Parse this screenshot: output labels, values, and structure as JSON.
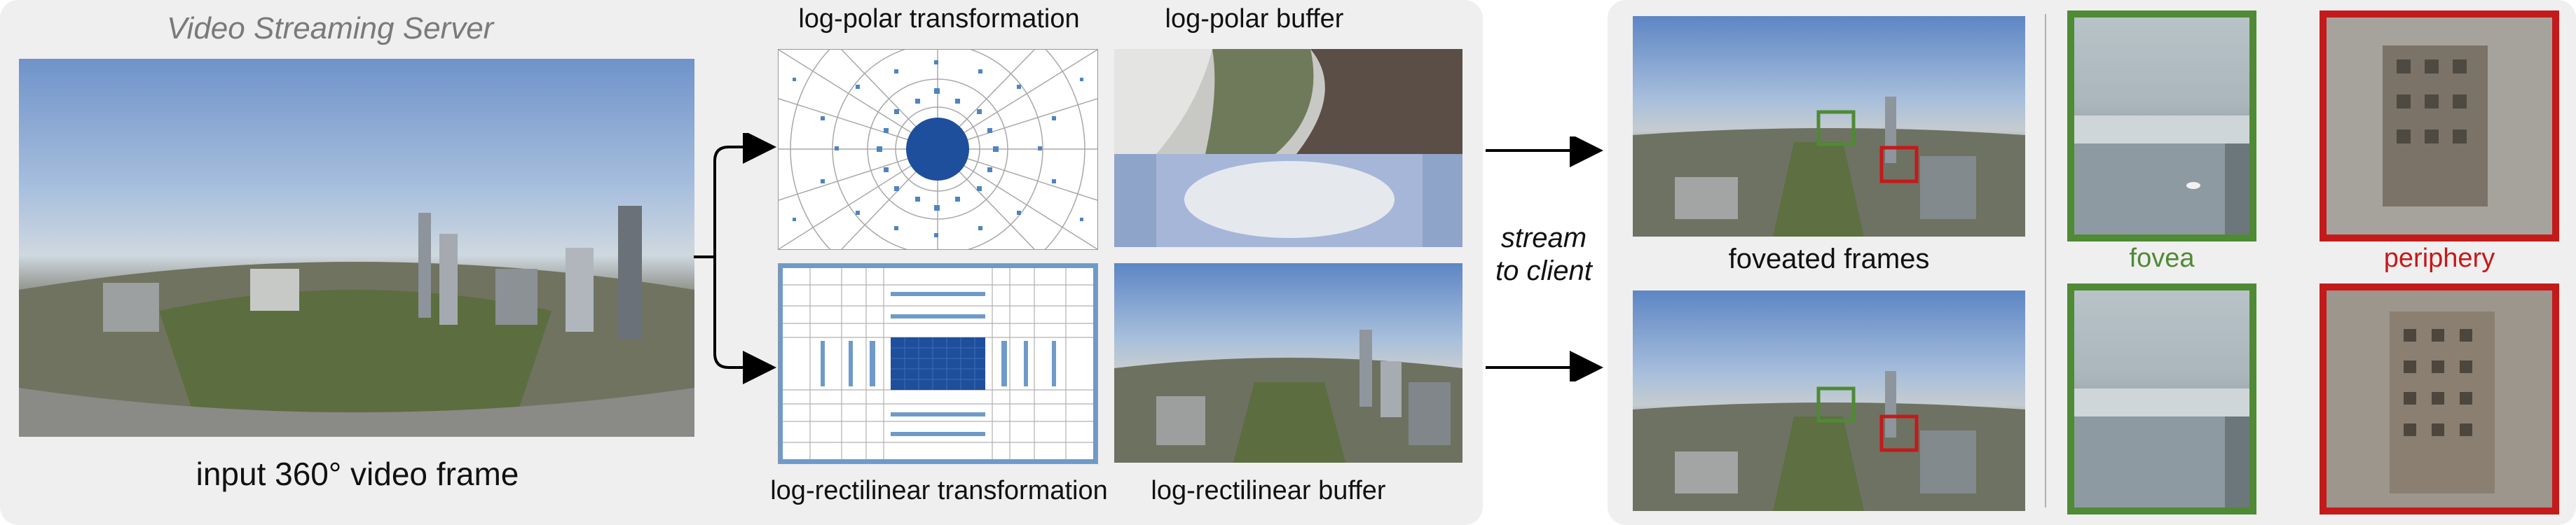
{
  "server_label": "Video Streaming Server",
  "input_caption": "input 360° video frame",
  "log_polar": {
    "transformation_label": "log-polar transformation",
    "buffer_label": "log-polar buffer"
  },
  "log_rect": {
    "transformation_label": "log-rectilinear transformation",
    "buffer_label": "log-rectilinear buffer"
  },
  "stream_label_line1": "stream",
  "stream_label_line2": "to client",
  "foveated_label": "foveated frames",
  "fovea_label": "fovea",
  "periphery_label": "periphery",
  "colors": {
    "fovea": "#4f8a34",
    "periphery": "#c41a1a",
    "grid_blue": "#1e4f9c",
    "grid_light": "#6e9ac9",
    "panel_bg": "#efefef"
  }
}
